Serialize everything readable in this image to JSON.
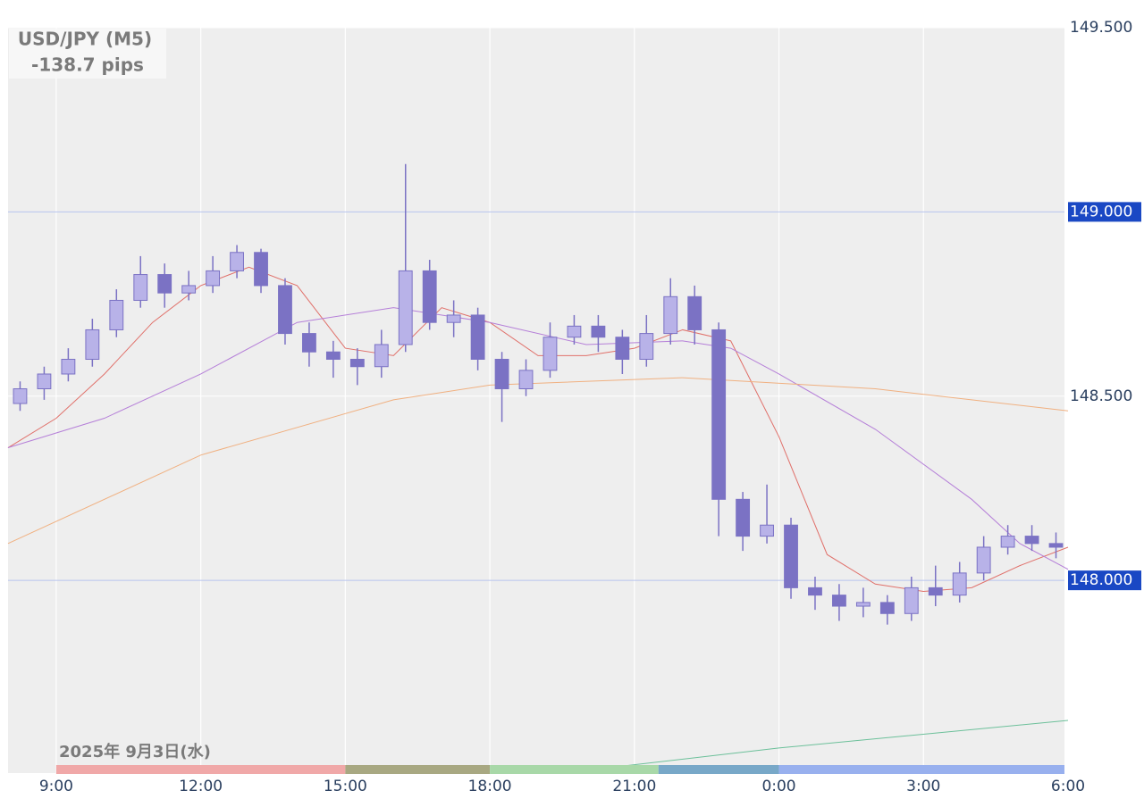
{
  "chart_data": {
    "type": "candlestick",
    "title": "USD/JPY (M5)",
    "subtitle": "-138.7 pips",
    "date_label": "2025年 9月3日(水)",
    "color": "#7b72c4",
    "x": [
      8,
      8.5,
      9,
      9.5,
      10,
      10.5,
      11,
      11.5,
      12,
      12.5,
      13,
      13.5,
      14,
      14.5,
      15,
      15.5,
      16,
      16.5,
      17,
      17.5,
      18,
      18.5,
      19,
      19.5,
      20,
      20.5,
      21,
      21.5,
      22,
      22.5,
      23,
      23.5,
      24,
      24.5,
      25,
      25.5,
      26,
      26.5,
      27,
      27.5,
      28,
      28.5,
      29,
      29.5
    ],
    "open": [
      148.48,
      148.52,
      148.56,
      148.6,
      148.68,
      148.76,
      148.83,
      148.78,
      148.8,
      148.84,
      148.89,
      148.8,
      148.67,
      148.62,
      148.6,
      148.58,
      148.64,
      148.84,
      148.7,
      148.72,
      148.6,
      148.52,
      148.57,
      148.66,
      148.69,
      148.66,
      148.6,
      148.67,
      148.77,
      148.68,
      148.22,
      148.12,
      148.15,
      147.98,
      147.96,
      147.93,
      147.94,
      147.91,
      147.98,
      147.96,
      148.02,
      148.09,
      148.12,
      148.1
    ],
    "high": [
      148.54,
      148.58,
      148.63,
      148.71,
      148.79,
      148.88,
      148.86,
      148.84,
      148.88,
      148.91,
      148.9,
      148.82,
      148.7,
      148.65,
      148.63,
      148.68,
      149.13,
      148.87,
      148.76,
      148.74,
      148.62,
      148.6,
      148.7,
      148.72,
      148.72,
      148.68,
      148.72,
      148.82,
      148.8,
      148.7,
      148.24,
      148.26,
      148.17,
      148.01,
      147.99,
      147.98,
      147.96,
      148.01,
      148.04,
      148.05,
      148.12,
      148.15,
      148.15,
      148.13
    ],
    "low": [
      148.46,
      148.49,
      148.54,
      148.58,
      148.66,
      148.74,
      148.74,
      148.76,
      148.78,
      148.82,
      148.78,
      148.64,
      148.58,
      148.55,
      148.53,
      148.55,
      148.62,
      148.68,
      148.66,
      148.57,
      148.43,
      148.5,
      148.55,
      148.64,
      148.62,
      148.56,
      148.58,
      148.64,
      148.64,
      148.12,
      148.08,
      148.1,
      147.95,
      147.92,
      147.89,
      147.9,
      147.88,
      147.89,
      147.93,
      147.94,
      148.0,
      148.07,
      148.08,
      148.06
    ],
    "close": [
      148.52,
      148.56,
      148.6,
      148.68,
      148.76,
      148.83,
      148.78,
      148.8,
      148.84,
      148.89,
      148.8,
      148.67,
      148.62,
      148.6,
      148.58,
      148.64,
      148.84,
      148.7,
      148.72,
      148.6,
      148.52,
      148.57,
      148.66,
      148.69,
      148.66,
      148.6,
      148.67,
      148.77,
      148.68,
      148.22,
      148.12,
      148.15,
      147.98,
      147.96,
      147.93,
      147.94,
      147.91,
      147.98,
      147.96,
      148.02,
      148.09,
      148.12,
      148.1,
      148.09
    ],
    "overlays": [
      {
        "color": "#e0706a",
        "x": [
          8,
          9,
          10,
          11,
          12,
          13,
          14,
          15,
          16,
          17,
          18,
          19,
          20,
          21,
          22,
          23,
          24,
          25,
          26,
          27,
          28,
          29,
          30
        ],
        "values": [
          148.36,
          148.44,
          148.56,
          148.7,
          148.8,
          148.85,
          148.8,
          148.63,
          148.61,
          148.74,
          148.7,
          148.61,
          148.61,
          148.63,
          148.68,
          148.65,
          148.39,
          148.07,
          147.99,
          147.97,
          147.98,
          148.04,
          148.09
        ]
      },
      {
        "color": "#b57fd8",
        "x": [
          8,
          10,
          12,
          14,
          16,
          18,
          20,
          22,
          23,
          24,
          26,
          28,
          29,
          30
        ],
        "values": [
          148.36,
          148.44,
          148.56,
          148.7,
          148.74,
          148.7,
          148.64,
          148.65,
          148.63,
          148.56,
          148.41,
          148.22,
          148.1,
          148.03
        ]
      },
      {
        "color": "#f0b080",
        "x": [
          8,
          12,
          16,
          18,
          22,
          26,
          30
        ],
        "values": [
          148.1,
          148.34,
          148.49,
          148.53,
          148.55,
          148.52,
          148.46
        ]
      },
      {
        "color": "#6cc09a",
        "x": [
          19.5,
          24,
          30
        ],
        "values": [
          147.477,
          147.545,
          147.62
        ]
      }
    ],
    "sessions": [
      {
        "start": 9,
        "end": 15,
        "color": "#f0a8a8"
      },
      {
        "start": 15,
        "end": 18,
        "color": "#a8a882"
      },
      {
        "start": 18,
        "end": 21.5,
        "color": "#a8d8a8"
      },
      {
        "start": 21.5,
        "end": 24,
        "color": "#78a8c8"
      },
      {
        "start": 24,
        "end": 30,
        "color": "#98b0ee"
      }
    ],
    "xlim": [
      8,
      30
    ],
    "xticks": [
      {
        "value": 9,
        "label": "9:00"
      },
      {
        "value": 12,
        "label": "12:00"
      },
      {
        "value": 15,
        "label": "15:00"
      },
      {
        "value": 18,
        "label": "18:00"
      },
      {
        "value": 21,
        "label": "21:00"
      },
      {
        "value": 24,
        "label": "0:00"
      },
      {
        "value": 27,
        "label": "3:00"
      },
      {
        "value": 30,
        "label": "6:00"
      }
    ],
    "ylim": [
      147.477,
      149.5
    ],
    "yticks": [
      {
        "value": 148,
        "label": "148.000"
      },
      {
        "value": 148.5,
        "label": "148.500"
      },
      {
        "value": 149,
        "label": "149.000"
      },
      {
        "value": 149.5,
        "label": "149.500"
      }
    ],
    "highlighted_levels": [
      148,
      149
    ],
    "grid": true
  }
}
